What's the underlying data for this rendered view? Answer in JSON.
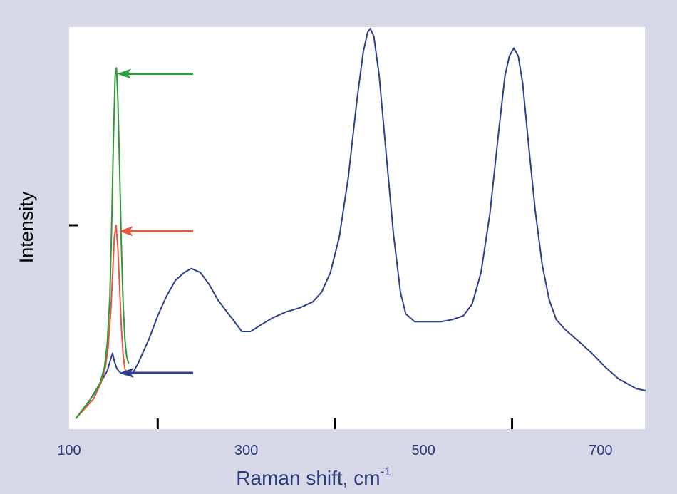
{
  "chart_data": {
    "type": "line",
    "xlabel": "Raman shift, cm",
    "xlabel_superscript": "-1",
    "ylabel": "Intensity",
    "xlim": [
      100,
      750
    ],
    "ylim": [
      0,
      1
    ],
    "x_tick_labels": [
      "100",
      "300",
      "500",
      "700"
    ],
    "x_tick_values": [
      100,
      300,
      500,
      700
    ],
    "x_minor_ticks": [
      200,
      400,
      600
    ],
    "y_tick_values": [
      0.5
    ],
    "grid": false,
    "legend": "none",
    "background_color": "#d7d9e9",
    "plot_background_color": "#ffffff",
    "axis_text_color": "#2a3a7a",
    "series": [
      {
        "color": "#2d3f8c",
        "points": [
          [
            108,
            0.01
          ],
          [
            115,
            0.03
          ],
          [
            122,
            0.05
          ],
          [
            130,
            0.08
          ],
          [
            138,
            0.11
          ],
          [
            143,
            0.13
          ],
          [
            147,
            0.16
          ],
          [
            149,
            0.175
          ],
          [
            151,
            0.155
          ],
          [
            154,
            0.135
          ],
          [
            158,
            0.125
          ],
          [
            165,
            0.12
          ],
          [
            172,
            0.125
          ],
          [
            178,
            0.15
          ],
          [
            190,
            0.21
          ],
          [
            200,
            0.27
          ],
          [
            210,
            0.32
          ],
          [
            220,
            0.36
          ],
          [
            230,
            0.38
          ],
          [
            238,
            0.39
          ],
          [
            248,
            0.38
          ],
          [
            258,
            0.35
          ],
          [
            268,
            0.31
          ],
          [
            278,
            0.28
          ],
          [
            285,
            0.26
          ],
          [
            295,
            0.23
          ],
          [
            305,
            0.23
          ],
          [
            315,
            0.245
          ],
          [
            330,
            0.265
          ],
          [
            345,
            0.28
          ],
          [
            360,
            0.29
          ],
          [
            375,
            0.305
          ],
          [
            385,
            0.33
          ],
          [
            395,
            0.38
          ],
          [
            405,
            0.47
          ],
          [
            415,
            0.62
          ],
          [
            425,
            0.82
          ],
          [
            432,
            0.94
          ],
          [
            437,
            0.99
          ],
          [
            440,
            1.0
          ],
          [
            444,
            0.98
          ],
          [
            450,
            0.88
          ],
          [
            458,
            0.68
          ],
          [
            466,
            0.48
          ],
          [
            474,
            0.33
          ],
          [
            480,
            0.275
          ],
          [
            490,
            0.255
          ],
          [
            505,
            0.255
          ],
          [
            520,
            0.255
          ],
          [
            532,
            0.26
          ],
          [
            545,
            0.27
          ],
          [
            555,
            0.3
          ],
          [
            565,
            0.38
          ],
          [
            575,
            0.53
          ],
          [
            585,
            0.74
          ],
          [
            592,
            0.88
          ],
          [
            597,
            0.93
          ],
          [
            602,
            0.95
          ],
          [
            607,
            0.93
          ],
          [
            612,
            0.86
          ],
          [
            618,
            0.72
          ],
          [
            626,
            0.54
          ],
          [
            634,
            0.4
          ],
          [
            642,
            0.31
          ],
          [
            650,
            0.26
          ],
          [
            660,
            0.235
          ],
          [
            675,
            0.205
          ],
          [
            690,
            0.175
          ],
          [
            705,
            0.14
          ],
          [
            720,
            0.11
          ],
          [
            740,
            0.085
          ],
          [
            750,
            0.08
          ]
        ]
      },
      {
        "color": "#e8553a",
        "points": [
          [
            108,
            0.01
          ],
          [
            118,
            0.035
          ],
          [
            128,
            0.06
          ],
          [
            136,
            0.1
          ],
          [
            141,
            0.14
          ],
          [
            144,
            0.19
          ],
          [
            147,
            0.28
          ],
          [
            149,
            0.37
          ],
          [
            151,
            0.47
          ],
          [
            153,
            0.5
          ],
          [
            155,
            0.44
          ],
          [
            157,
            0.34
          ],
          [
            159,
            0.24
          ],
          [
            161,
            0.17
          ],
          [
            163,
            0.135
          ],
          [
            165,
            0.125
          ]
        ]
      },
      {
        "color": "#2f9a3a",
        "points": [
          [
            108,
            0.01
          ],
          [
            118,
            0.04
          ],
          [
            128,
            0.07
          ],
          [
            135,
            0.1
          ],
          [
            140,
            0.14
          ],
          [
            143,
            0.2
          ],
          [
            146,
            0.32
          ],
          [
            148,
            0.5
          ],
          [
            150,
            0.72
          ],
          [
            152,
            0.88
          ],
          [
            153.5,
            0.9
          ],
          [
            155,
            0.82
          ],
          [
            157,
            0.64
          ],
          [
            159,
            0.45
          ],
          [
            161,
            0.3
          ],
          [
            163,
            0.21
          ],
          [
            165,
            0.165
          ],
          [
            167,
            0.15
          ]
        ]
      }
    ],
    "annotations": [
      {
        "type": "arrow",
        "color": "#2f9a3a",
        "points_to": [
          154,
          0.885
        ],
        "from_x": 240
      },
      {
        "type": "arrow",
        "color": "#e8553a",
        "points_to": [
          156,
          0.485
        ],
        "from_x": 240
      },
      {
        "type": "arrow",
        "color": "#2d3f8c",
        "points_to": [
          157,
          0.125
        ],
        "from_x": 240
      }
    ]
  }
}
